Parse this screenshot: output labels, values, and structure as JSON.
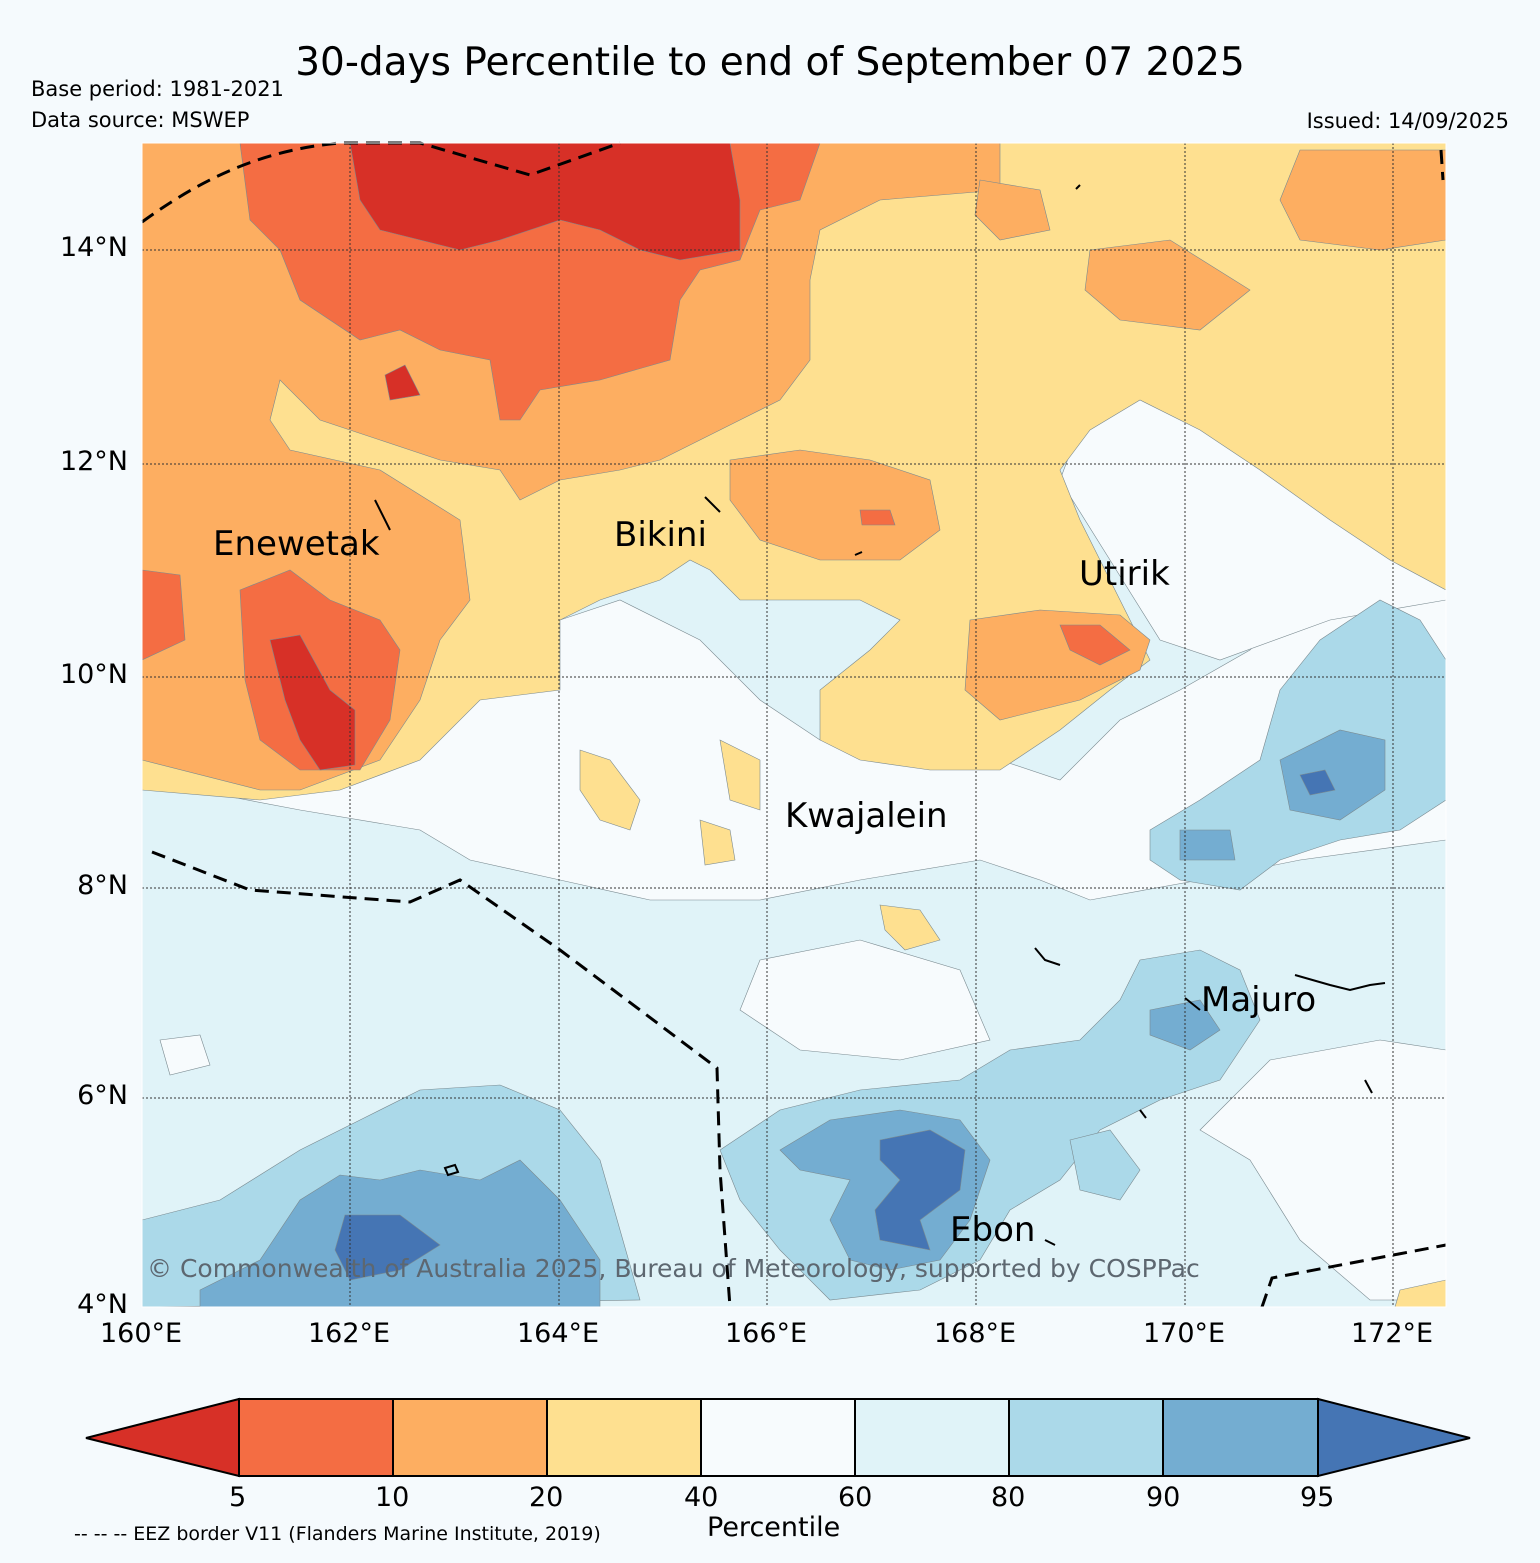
{
  "header": {
    "title": "30-days Percentile to end of September 07 2025",
    "base_period": "Base period: 1981-2021",
    "data_source": "Data source: MSWEP",
    "issued": "Issued: 14/09/2025"
  },
  "map": {
    "lon_ticks": [
      "160°E",
      "162°E",
      "164°E",
      "166°E",
      "168°E",
      "170°E",
      "172°E"
    ],
    "lat_ticks": [
      "14°N",
      "12°N",
      "10°N",
      "8°N",
      "6°N",
      "4°N"
    ],
    "places": [
      "Enewetak",
      "Bikini",
      "Utirik",
      "Kwajalein",
      "Majuro",
      "Ebon"
    ],
    "copyright": "© Commonwealth of Australia 2025, Bureau of Meteorology, supported by COSPPac"
  },
  "colorbar": {
    "label": "Percentile",
    "ticks": [
      "5",
      "10",
      "20",
      "40",
      "60",
      "80",
      "90",
      "95"
    ],
    "colors": {
      "below_5": "#d73027",
      "p5_10": "#f46d43",
      "p10_20": "#fdae61",
      "p20_40": "#fee090",
      "p40_60": "#f7fbfd",
      "p60_80": "#e0f3f8",
      "p80_90": "#abd9e9",
      "p90_95": "#74add1",
      "above_95": "#4575b4"
    }
  },
  "footnote": "-- -- -- EEZ border V11 (Flanders Marine Institute, 2019)"
}
